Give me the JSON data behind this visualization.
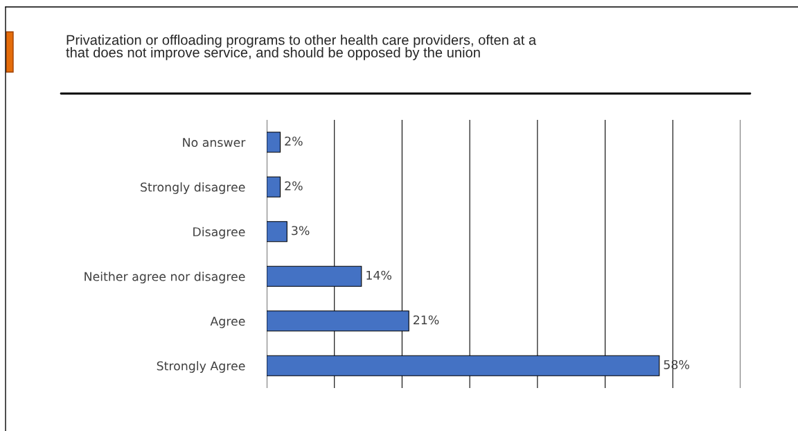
{
  "chart_data": {
    "type": "bar",
    "orientation": "horizontal",
    "title": "Privatization or offloading programs to other health care providers, often at a\nthat does not improve service, and should be opposed by the union",
    "categories": [
      "No answer",
      "Strongly disagree",
      "Disagree",
      "Neither agree nor disagree",
      "Agree",
      "Strongly Agree"
    ],
    "values": [
      2,
      2,
      3,
      14,
      21,
      58
    ],
    "value_labels": [
      "2%",
      "2%",
      "3%",
      "14%",
      "21%",
      "58%"
    ],
    "color": "#4472c4",
    "xlim": [
      0,
      70
    ],
    "xticks": [
      {
        "value": 0,
        "label": null
      },
      {
        "value": 10,
        "label": null
      },
      {
        "value": 20,
        "label": null
      },
      {
        "value": 30,
        "label": null
      },
      {
        "value": 40,
        "label": null
      },
      {
        "value": 50,
        "label": null
      },
      {
        "value": 60,
        "label": null
      },
      {
        "value": 70,
        "label": null
      }
    ],
    "tick_labels": "y",
    "grid": "x",
    "legend": false
  }
}
